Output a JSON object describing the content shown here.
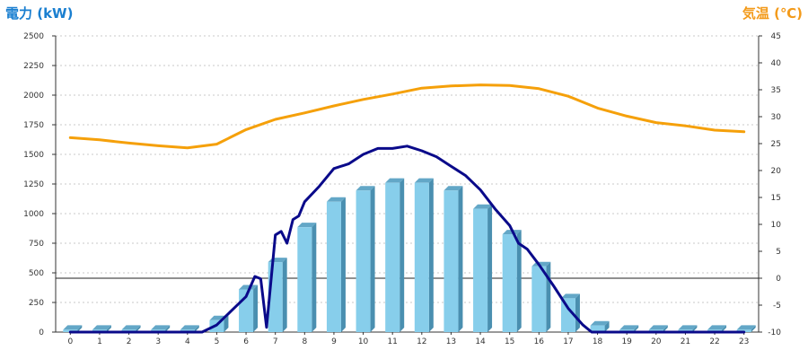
{
  "chart_data": {
    "type": "bar+line",
    "left_axis_title": "電力 (kW)",
    "right_axis_title": "気温 (℃)",
    "left_axis": {
      "min": 0,
      "max": 2500,
      "ticks": [
        "0",
        "250",
        "500",
        "750",
        "1000",
        "1250",
        "1500",
        "1750",
        "2000",
        "2250",
        "2500"
      ]
    },
    "right_axis": {
      "min": -10,
      "max": 45,
      "ticks": [
        "-10",
        "-5",
        "0",
        "5",
        "10",
        "15",
        "20",
        "25",
        "30",
        "35",
        "40",
        "45"
      ]
    },
    "categories": [
      "0",
      "1",
      "2",
      "3",
      "4",
      "5",
      "6",
      "7",
      "8",
      "9",
      "10",
      "11",
      "12",
      "13",
      "14",
      "15",
      "16",
      "17",
      "18",
      "19",
      "20",
      "21",
      "22",
      "23"
    ],
    "grid": true,
    "series": [
      {
        "kind": "bar",
        "axis": "left",
        "color": "#87ceeb",
        "values": [
          20,
          20,
          20,
          20,
          20,
          100,
          360,
          590,
          885,
          1100,
          1195,
          1260,
          1260,
          1195,
          1040,
          825,
          555,
          285,
          55,
          20,
          20,
          20,
          20,
          20
        ]
      },
      {
        "kind": "line",
        "axis": "left",
        "color": "#0a0a8a",
        "x": [
          0,
          4.5,
          5.0,
          5.5,
          6.0,
          6.3,
          6.5,
          6.7,
          7.0,
          7.2,
          7.4,
          7.6,
          7.8,
          8.0,
          8.5,
          9.0,
          9.5,
          10.0,
          10.5,
          11.0,
          11.5,
          12.0,
          12.5,
          13.0,
          13.5,
          14.0,
          14.5,
          15.0,
          15.3,
          15.6,
          16.0,
          16.5,
          17.0,
          17.5,
          17.8,
          23
        ],
        "y": [
          0,
          0,
          60,
          180,
          300,
          470,
          450,
          40,
          820,
          850,
          750,
          950,
          980,
          1100,
          1230,
          1380,
          1420,
          1500,
          1550,
          1550,
          1570,
          1530,
          1480,
          1400,
          1320,
          1200,
          1040,
          900,
          750,
          700,
          570,
          390,
          200,
          60,
          0,
          0
        ]
      },
      {
        "kind": "line",
        "axis": "right",
        "color": "#f5a00a",
        "values": [
          26.1,
          25.7,
          25.1,
          24.6,
          24.2,
          24.9,
          27.6,
          29.5,
          30.7,
          32.0,
          33.2,
          34.2,
          35.3,
          35.7,
          35.9,
          35.8,
          35.2,
          33.8,
          31.6,
          30.1,
          28.9,
          28.3,
          27.5,
          27.2
        ]
      }
    ]
  }
}
